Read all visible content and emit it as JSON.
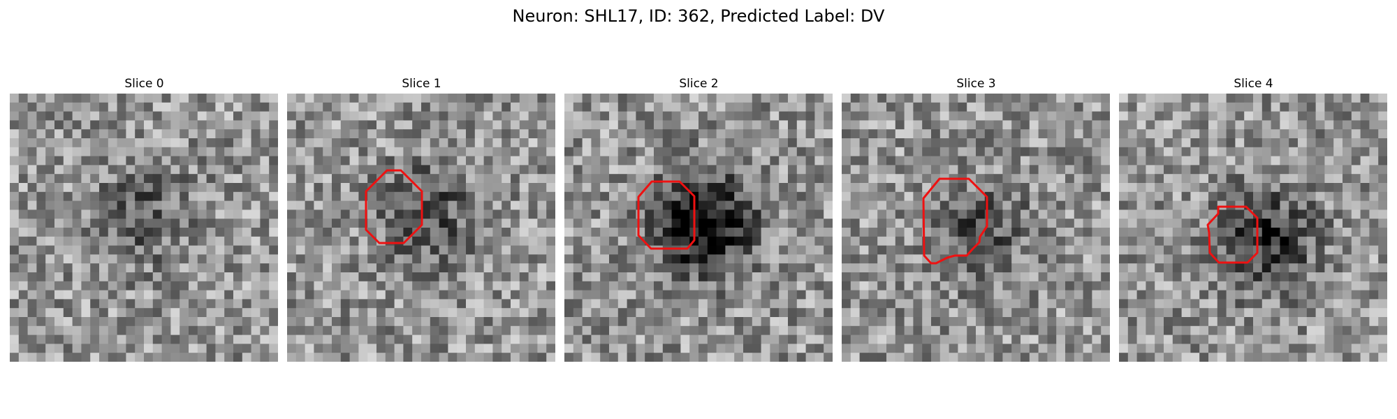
{
  "figure": {
    "title": "Neuron: SHL17, ID: 362, Predicted Label: DV"
  },
  "colors": {
    "roi_outline": "#ee1111",
    "background": "#ffffff"
  },
  "panels": [
    {
      "title": "Slice 0",
      "dark_center": 0.35,
      "roi": false
    },
    {
      "title": "Slice 1",
      "dark_center": 0.45,
      "roi": true
    },
    {
      "title": "Slice 2",
      "dark_center": 0.95,
      "roi": true
    },
    {
      "title": "Slice 3",
      "dark_center": 0.4,
      "roi": true
    },
    {
      "title": "Slice 4",
      "dark_center": 0.6,
      "roi": true
    }
  ]
}
